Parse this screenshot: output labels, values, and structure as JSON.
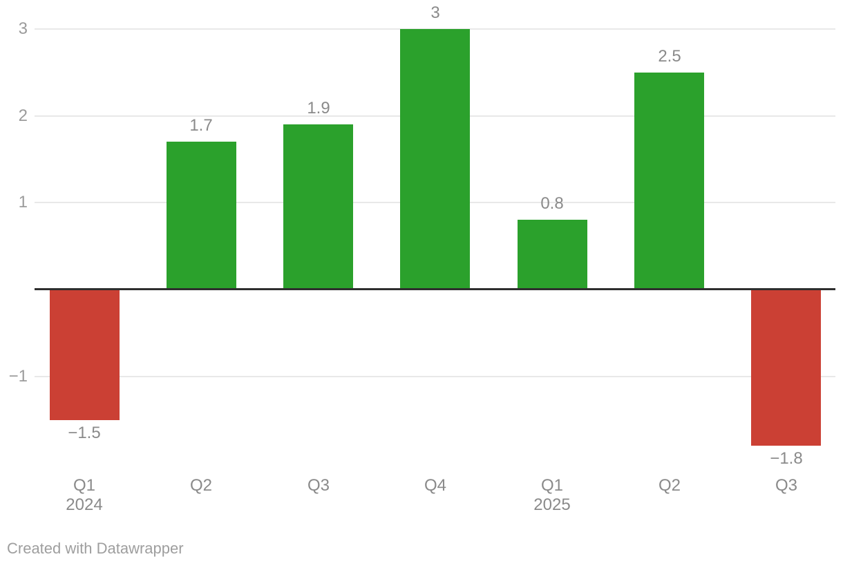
{
  "chart_data": {
    "type": "bar",
    "categories": [
      {
        "label": "Q1",
        "sublabel": "2024"
      },
      {
        "label": "Q2",
        "sublabel": ""
      },
      {
        "label": "Q3",
        "sublabel": ""
      },
      {
        "label": "Q4",
        "sublabel": ""
      },
      {
        "label": "Q1",
        "sublabel": "2025"
      },
      {
        "label": "Q2",
        "sublabel": ""
      },
      {
        "label": "Q3",
        "sublabel": ""
      }
    ],
    "values": [
      -1.5,
      1.7,
      1.9,
      3,
      0.8,
      2.5,
      -1.8
    ],
    "value_labels": [
      "−1.5",
      "1.7",
      "1.9",
      "3",
      "0.8",
      "2.5",
      "−1.8"
    ],
    "yticks": [
      {
        "value": 3,
        "label": "3"
      },
      {
        "value": 2,
        "label": "2"
      },
      {
        "value": 1,
        "label": "1"
      },
      {
        "value": -1,
        "label": "−1"
      }
    ],
    "ylim": [
      -2,
      3.3
    ],
    "grid": "horizontal",
    "zero_baseline": true,
    "legend": "none",
    "colors": {
      "positive": "#2ba12c",
      "negative": "#cb4034",
      "gridline": "#e8e8e8",
      "baseline": "#2e2e2e",
      "tick_text": "#9b9b9b",
      "value_text": "#8a8a8a"
    }
  },
  "footer": {
    "attribution_label": "Created with Datawrapper"
  }
}
